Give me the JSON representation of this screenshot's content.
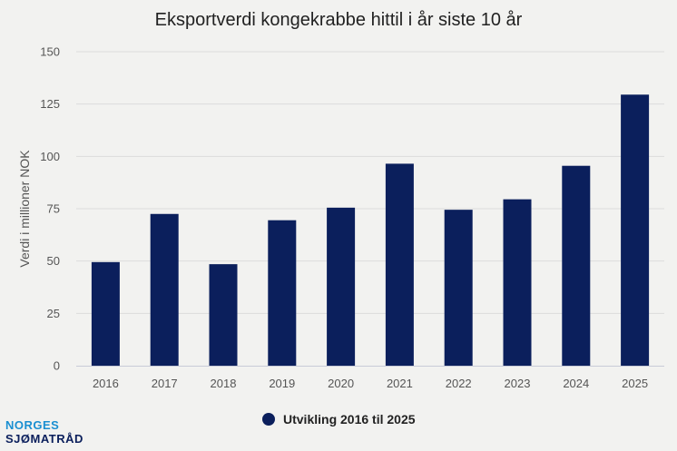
{
  "chart_data": {
    "type": "bar",
    "title": "Eksportverdi kongekrabbe hittil i år siste 10 år",
    "xlabel": "",
    "ylabel": "Verdi i millioner NOK",
    "categories": [
      "2016",
      "2017",
      "2018",
      "2019",
      "2020",
      "2021",
      "2022",
      "2023",
      "2024",
      "2025"
    ],
    "series": [
      {
        "name": "Utvikling 2016 til 2025",
        "values": [
          49.5,
          72.5,
          48.5,
          69.5,
          75.5,
          96.5,
          74.5,
          79.5,
          95.5,
          129.5
        ]
      }
    ],
    "ylim": [
      0,
      150
    ],
    "yticks": [
      0,
      25,
      50,
      75,
      100,
      125,
      150
    ],
    "grid": true,
    "legend": "bottom-center",
    "color": "#0b1f5c"
  },
  "logo": {
    "line1": "NORGES",
    "line2": "SJØMATRÅD"
  }
}
